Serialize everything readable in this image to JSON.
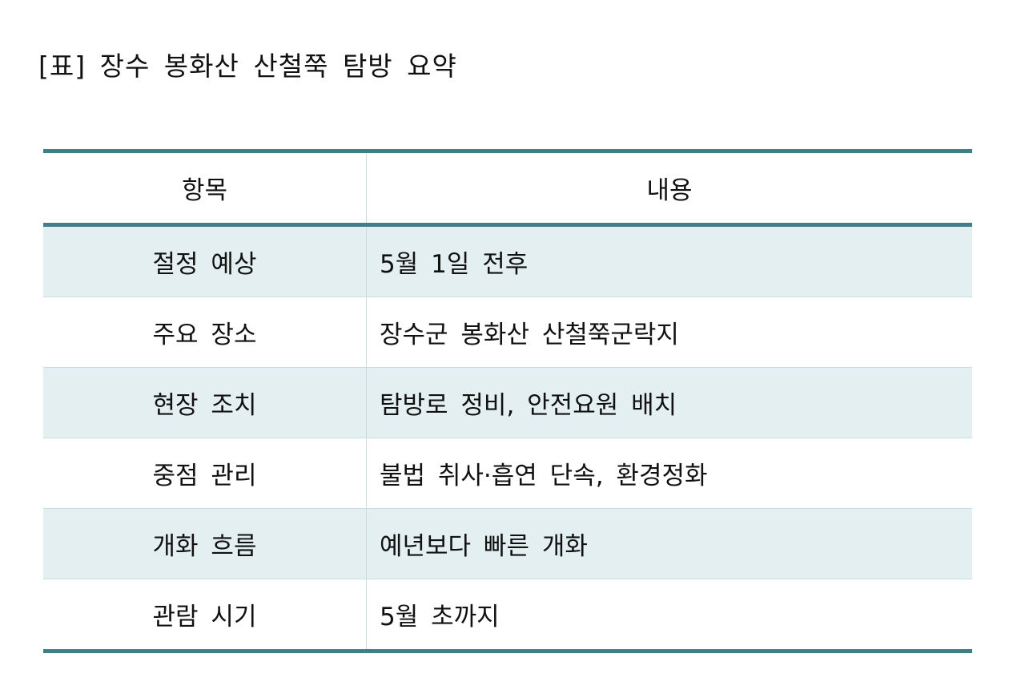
{
  "title": "[표] 장수 봉화산 산철쭉 탐방 요약",
  "table": {
    "headers": [
      "항목",
      "내용"
    ],
    "rows": [
      [
        "절정 예상",
        "5월 1일 전후"
      ],
      [
        "주요 장소",
        "장수군 봉화산 산철쭉군락지"
      ],
      [
        "현장 조치",
        "탐방로 정비, 안전요원 배치"
      ],
      [
        "중점 관리",
        "불법 취사·흡연 단속, 환경정화"
      ],
      [
        "개화 흐름",
        "예년보다 빠른 개화"
      ],
      [
        "관람 시기",
        "5월 초까지"
      ]
    ]
  },
  "colors": {
    "rule": "#3f8088",
    "shade": "#e3eff1"
  }
}
